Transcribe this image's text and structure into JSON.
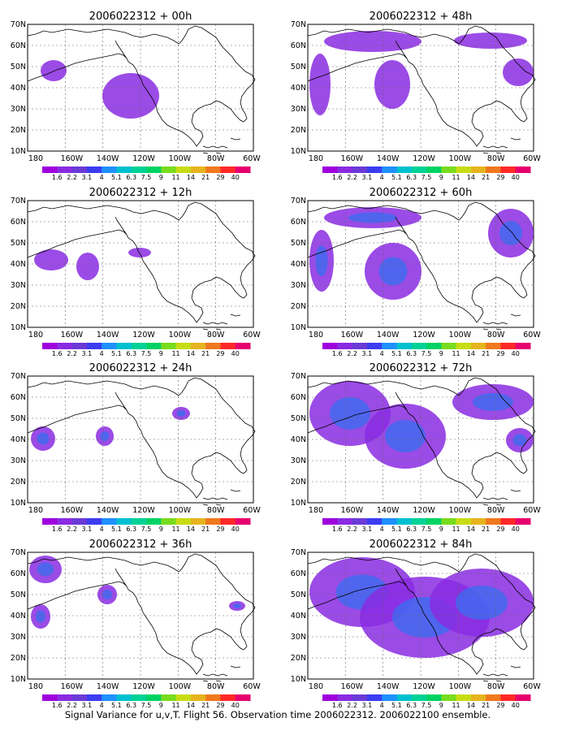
{
  "caption": "Signal Variance for u,v,T. Flight 56. Observation time 2006022312. 2006022100 ensemble.",
  "lat_labels": [
    "10N",
    "20N",
    "30N",
    "40N",
    "50N",
    "60N",
    "70N"
  ],
  "lon_labels": [
    "180",
    "160W",
    "140W",
    "120W",
    "100W",
    "80W",
    "60W"
  ],
  "colorbar": {
    "labels": [
      "1.6",
      "2.2",
      "3.1",
      "4",
      "5.1",
      "6.3",
      "7.5",
      "9",
      "11",
      "14",
      "21",
      "29",
      "40"
    ],
    "colors": [
      "#9f00dd",
      "#8a2be2",
      "#6a3ad6",
      "#3c3cf0",
      "#1e90ff",
      "#00c0d0",
      "#00d296",
      "#00d264",
      "#78dc1e",
      "#c8dc14",
      "#e6b41e",
      "#f0781e",
      "#ff2828",
      "#e6006e"
    ]
  },
  "panels": [
    {
      "title": "2006022312 + 00h"
    },
    {
      "title": "2006022312 + 48h"
    },
    {
      "title": "2006022312 + 12h"
    },
    {
      "title": "2006022312 + 60h"
    },
    {
      "title": "2006022312 + 24h"
    },
    {
      "title": "2006022312 + 72h"
    },
    {
      "title": "2006022312 + 36h"
    },
    {
      "title": "2006022312 + 84h"
    }
  ]
}
